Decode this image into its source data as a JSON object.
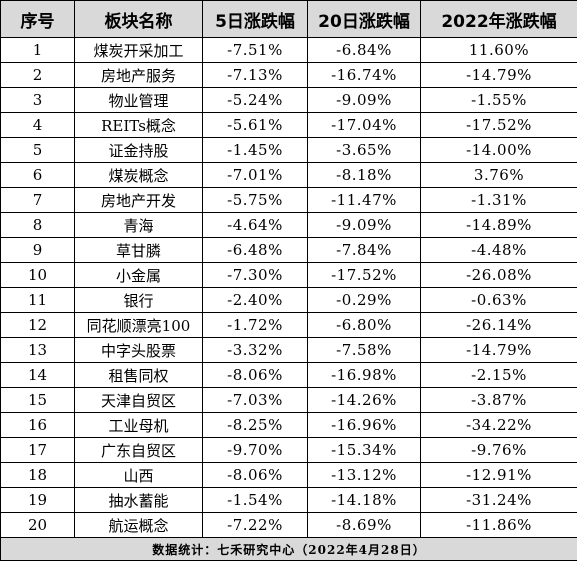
{
  "headers": [
    "序号",
    "板块名称",
    "5日涨跌幅",
    "20日涨跌幅",
    "2022年涨跌幅"
  ],
  "rows": [
    [
      "1",
      "煤炭开采加工",
      "-7.51%",
      "-6.84%",
      "11.60%"
    ],
    [
      "2",
      "房地产服务",
      "-7.13%",
      "-16.74%",
      "-14.79%"
    ],
    [
      "3",
      "物业管理",
      "-5.24%",
      "-9.09%",
      "-1.55%"
    ],
    [
      "4",
      "REITs概念",
      "-5.61%",
      "-17.04%",
      "-17.52%"
    ],
    [
      "5",
      "证金持股",
      "-1.45%",
      "-3.65%",
      "-14.00%"
    ],
    [
      "6",
      "煤炭概念",
      "-7.01%",
      "-8.18%",
      "3.76%"
    ],
    [
      "7",
      "房地产开发",
      "-5.75%",
      "-11.47%",
      "-1.31%"
    ],
    [
      "8",
      "青海",
      "-4.64%",
      "-9.09%",
      "-14.89%"
    ],
    [
      "9",
      "草甘膦",
      "-6.48%",
      "-7.84%",
      "-4.48%"
    ],
    [
      "10",
      "小金属",
      "-7.30%",
      "-17.52%",
      "-26.08%"
    ],
    [
      "11",
      "银行",
      "-2.40%",
      "-0.29%",
      "-0.63%"
    ],
    [
      "12",
      "同花顺漂亮100",
      "-1.72%",
      "-6.80%",
      "-26.14%"
    ],
    [
      "13",
      "中字头股票",
      "-3.32%",
      "-7.58%",
      "-14.79%"
    ],
    [
      "14",
      "租售同权",
      "-8.06%",
      "-16.98%",
      "-2.15%"
    ],
    [
      "15",
      "天津自贸区",
      "-7.03%",
      "-14.26%",
      "-3.87%"
    ],
    [
      "16",
      "工业母机",
      "-8.25%",
      "-16.96%",
      "-34.22%"
    ],
    [
      "17",
      "广东自贸区",
      "-9.70%",
      "-15.34%",
      "-9.76%"
    ],
    [
      "18",
      "山西",
      "-8.06%",
      "-13.12%",
      "-12.91%"
    ],
    [
      "19",
      "抽水蓄能",
      "-1.54%",
      "-14.18%",
      "-31.24%"
    ],
    [
      "20",
      "航运概念",
      "-7.22%",
      "-8.69%",
      "-11.86%"
    ]
  ],
  "footer": "数据统计：七禾研究中心（2022年4月28日）",
  "colors": {
    "header_bg": "#d9d9d9",
    "footer_bg": "#d9d9d9",
    "border": "#000000"
  }
}
